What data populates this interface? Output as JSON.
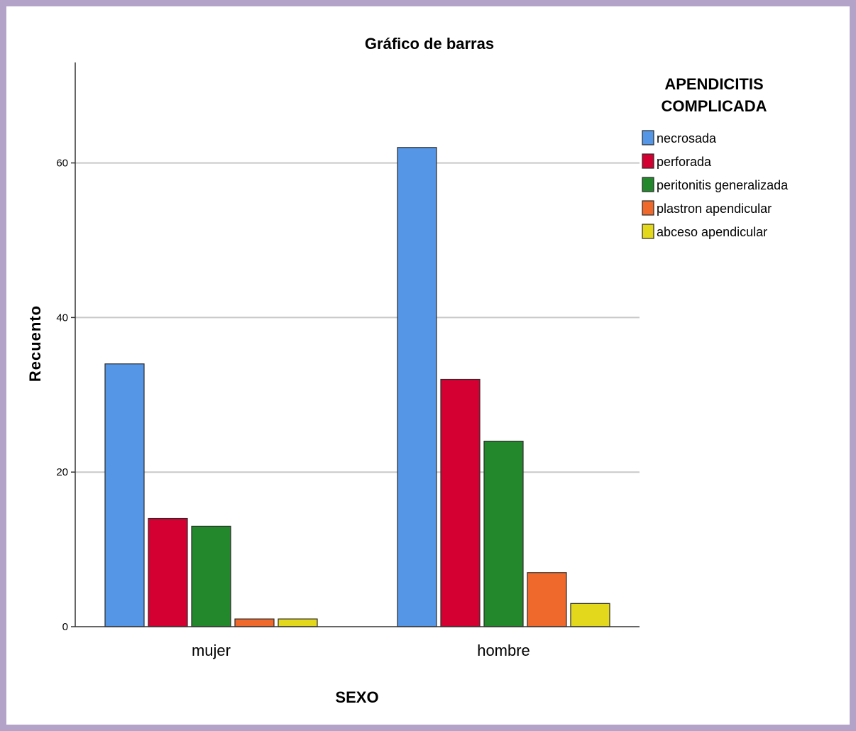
{
  "chart_data": {
    "type": "bar",
    "title": "Gráfico de barras",
    "xlabel": "SEXO",
    "ylabel": "Recuento",
    "categories": [
      "mujer",
      "hombre"
    ],
    "ylim": [
      0,
      73
    ],
    "yticks": [
      "0",
      "20",
      "40",
      "60"
    ],
    "grid": true,
    "legend_title": [
      "APENDICITIS",
      "COMPLICADA"
    ],
    "legend_position": "right",
    "series": [
      {
        "name": "necrosada",
        "color": "#5596e6",
        "values": [
          34,
          62
        ]
      },
      {
        "name": "perforada",
        "color": "#d50032",
        "values": [
          14,
          32
        ]
      },
      {
        "name": "peritonitis generalizada",
        "color": "#22882b",
        "values": [
          13,
          24
        ]
      },
      {
        "name": "plastron apendicular",
        "color": "#f0692c",
        "values": [
          1,
          7
        ]
      },
      {
        "name": "abceso apendicular",
        "color": "#e3d81b",
        "values": [
          1,
          3
        ]
      }
    ]
  }
}
